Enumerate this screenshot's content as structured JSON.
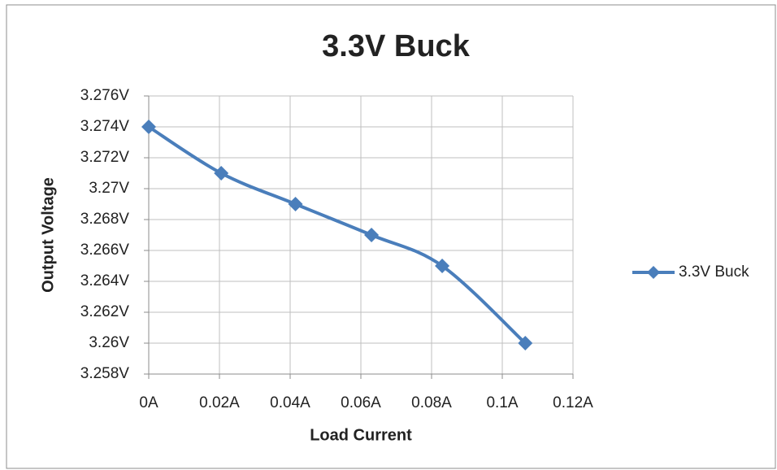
{
  "chart_data": {
    "type": "line",
    "title": "3.3V Buck",
    "x_label": "Load Current",
    "y_label": "Output Voltage",
    "x": [
      0,
      0.0205,
      0.0415,
      0.063,
      0.083,
      0.1065
    ],
    "series": [
      {
        "name": "3.3V Buck",
        "color": "#4a7ebb",
        "values": [
          3.274,
          3.271,
          3.269,
          3.267,
          3.265,
          3.26
        ]
      }
    ],
    "xlim": [
      0,
      0.12
    ],
    "xticks": [
      {
        "value": 0,
        "label": "0A"
      },
      {
        "value": 0.02,
        "label": "0.02A"
      },
      {
        "value": 0.04,
        "label": "0.04A"
      },
      {
        "value": 0.06,
        "label": "0.06A"
      },
      {
        "value": 0.08,
        "label": "0.08A"
      },
      {
        "value": 0.1,
        "label": "0.1A"
      },
      {
        "value": 0.12,
        "label": "0.12A"
      }
    ],
    "ylim": [
      3.258,
      3.276
    ],
    "yticks": [
      {
        "value": 3.258,
        "label": "3.258V"
      },
      {
        "value": 3.26,
        "label": "3.26V"
      },
      {
        "value": 3.262,
        "label": "3.262V"
      },
      {
        "value": 3.264,
        "label": "3.264V"
      },
      {
        "value": 3.266,
        "label": "3.266V"
      },
      {
        "value": 3.268,
        "label": "3.268V"
      },
      {
        "value": 3.27,
        "label": "3.27V"
      },
      {
        "value": 3.272,
        "label": "3.272V"
      },
      {
        "value": 3.274,
        "label": "3.274V"
      },
      {
        "value": 3.276,
        "label": "3.276V"
      }
    ],
    "grid": true,
    "smooth": true,
    "legend": "right"
  }
}
